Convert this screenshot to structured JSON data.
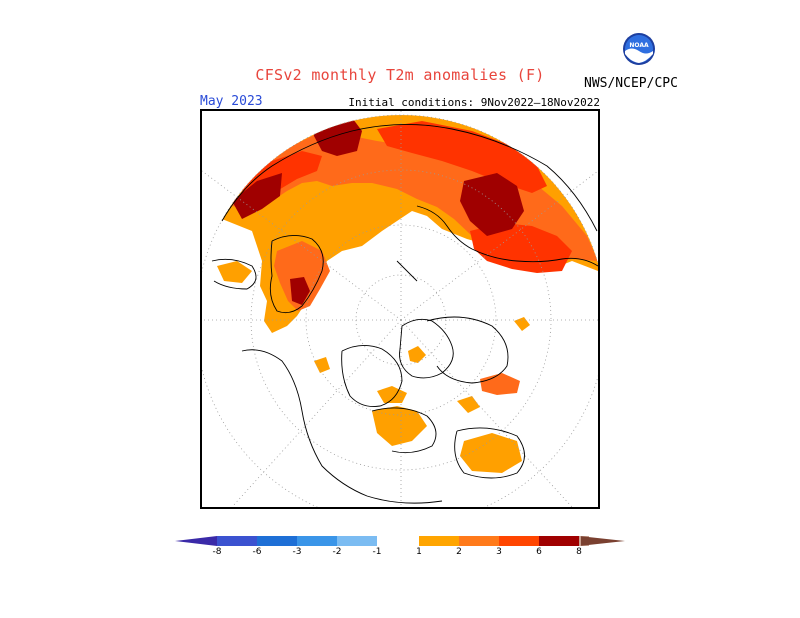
{
  "header": {
    "title": "CFSv2 monthly T2m anomalies (F)",
    "month": "May 2023",
    "initial_conditions": "Initial conditions: 9Nov2022–18Nov2022",
    "agency": "NWS/NCEP/CPC",
    "logo_text": "NOAA"
  },
  "map": {
    "projection": "north-polar-stereographic",
    "variable": "T2m anomaly",
    "units": "F"
  },
  "legend": {
    "labels": [
      "-8",
      "-6",
      "-3",
      "-2",
      "-1",
      "1",
      "2",
      "3",
      "6",
      "8"
    ],
    "colors": [
      "#3a2aa8",
      "#3b52d0",
      "#1e6fd6",
      "#3a95e8",
      "#7bbcf2",
      "#ffffff",
      "#ffa500",
      "#ff7a1a",
      "#ff4500",
      "#a00000",
      "#c8a090",
      "#7a4030"
    ]
  },
  "colors": {
    "anom_1_2": "#ffa000",
    "anom_2_3": "#ff6a1a",
    "anom_3_6": "#ff3300",
    "anom_6_8": "#a00000",
    "title": "#e8453c",
    "month": "#2a4bd7"
  }
}
